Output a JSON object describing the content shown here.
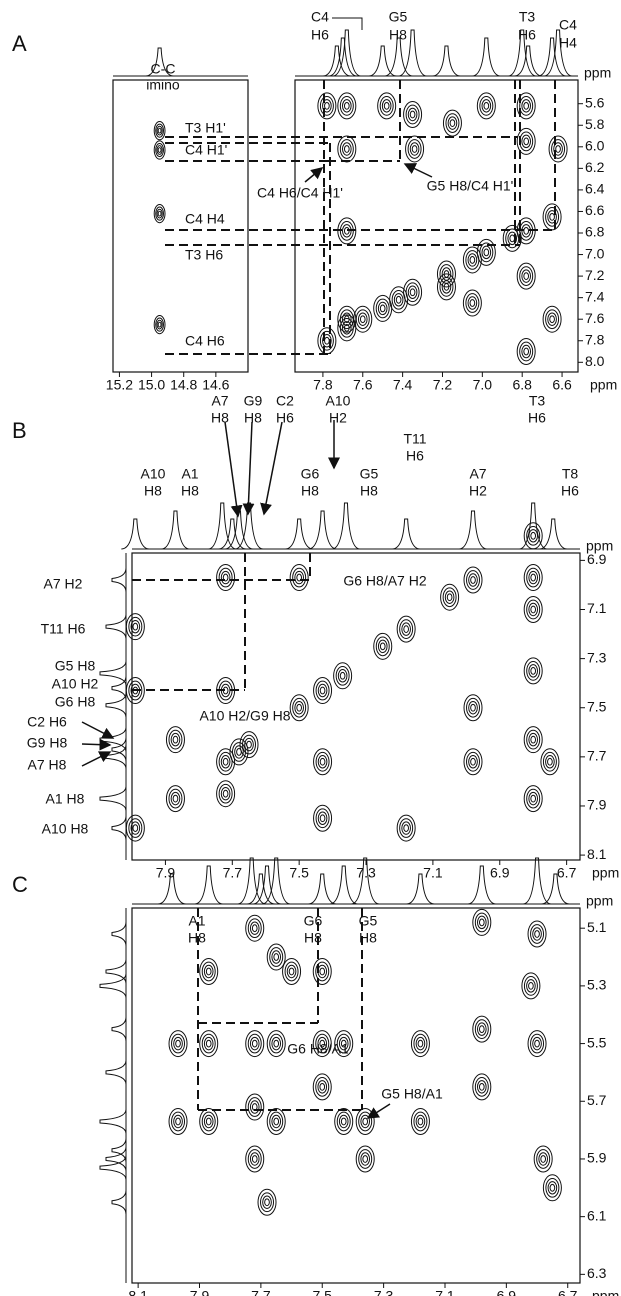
{
  "chart_data": [
    {
      "type": "contour",
      "panel_label": "A",
      "unit": "ppm",
      "xlim": [
        7.94,
        6.52
      ],
      "xticks": [
        7.8,
        7.6,
        7.4,
        7.2,
        {
          "value": 7,
          "label": "7.0"
        },
        6.8,
        6.6
      ],
      "ylim": [
        5.38,
        8.09
      ],
      "yticks": [
        5.6,
        5.8,
        {
          "value": 6,
          "label": "6.0"
        },
        6.2,
        6.4,
        6.6,
        6.8,
        {
          "value": 7,
          "label": "7.0"
        },
        7.2,
        7.4,
        7.6,
        7.8,
        {
          "value": 8,
          "label": "8.0"
        }
      ],
      "imino_title": [
        "C-C",
        "imino"
      ],
      "imino_xlim": [
        15.24,
        14.4
      ],
      "imino_xticks": [
        15.2,
        {
          "value": 15,
          "label": "15.0"
        },
        14.8,
        14.6
      ],
      "imino_peaks": {
        "x": [
          14.95,
          14.95,
          14.95,
          14.95
        ],
        "y": [
          5.85,
          6.03,
          6.62,
          7.65
        ]
      },
      "imino_spectrum": [
        14.95
      ],
      "top_labels": [
        [
          "C4",
          "H6"
        ],
        [
          "G5",
          "H8"
        ],
        [
          "T3",
          "H6"
        ],
        [
          "C4",
          "H4"
        ]
      ],
      "annotations": [
        "T3 H1'",
        "C4 H1'",
        "C4 H6/C4 H1'",
        "G5 H8/C4 H1'",
        "C4 H4",
        "T3 H6",
        "C4 H6"
      ],
      "spectrum": [
        7.73,
        7.7,
        7.68,
        7.5,
        7.42,
        7.35,
        7.18,
        6.98,
        6.8,
        6.77,
        6.65,
        6.62
      ],
      "peaks": {
        "x": [
          7.78,
          7.68,
          7.6,
          7.5,
          7.42,
          7.35,
          7.18,
          7.05,
          6.98,
          6.85,
          6.78,
          6.65,
          7.78,
          7.68,
          7.48,
          7.35,
          7.15,
          6.98,
          6.78,
          6.78,
          6.62,
          7.68,
          7.34,
          7.68,
          7.68,
          7.18,
          7.05,
          6.78,
          6.65,
          6.78
        ],
        "y": [
          7.8,
          7.68,
          7.6,
          7.5,
          7.42,
          7.35,
          7.18,
          7.05,
          6.98,
          6.85,
          6.78,
          6.65,
          5.62,
          5.62,
          5.62,
          5.7,
          5.78,
          5.62,
          5.62,
          5.95,
          6.02,
          6.02,
          6.02,
          6.78,
          7.6,
          7.3,
          7.45,
          7.2,
          7.6,
          7.9
        ]
      }
    },
    {
      "type": "contour",
      "panel_label": "B",
      "unit": "ppm",
      "xlim": [
        8.0,
        6.66
      ],
      "xticks": [
        7.9,
        7.7,
        7.5,
        7.3,
        7.1,
        6.9,
        6.7
      ],
      "ylim": [
        6.87,
        8.12
      ],
      "yticks": [
        6.9,
        7.1,
        7.3,
        7.5,
        7.7,
        7.9,
        8.1
      ],
      "top_labels": [
        [
          "A10",
          "H8"
        ],
        [
          "A1",
          "H8"
        ],
        [
          "A7",
          "H8"
        ],
        [
          "G9",
          "H8"
        ],
        [
          "C2",
          "H6"
        ],
        [
          "G6",
          "H8"
        ],
        [
          "A10",
          "H2"
        ],
        [
          "G5",
          "H8"
        ],
        [
          "T11",
          "H6"
        ],
        [
          "A7",
          "H2"
        ],
        [
          "T3",
          "H6"
        ],
        [
          "T8",
          "H6"
        ]
      ],
      "side_labels": [
        "A7 H2",
        "T11 H6",
        "G5 H8",
        "A10 H2",
        "G6 H8",
        "C2 H6",
        "G9 H8",
        "A7 H8",
        "A1 H8",
        "A10 H8"
      ],
      "annotations": [
        "G6 H8/A7 H2",
        "A10 H2/G9 H8"
      ],
      "spectrum": [
        7.99,
        7.87,
        7.73,
        7.7,
        7.68,
        7.65,
        7.5,
        7.43,
        7.36,
        7.18,
        6.98,
        6.8,
        6.74
      ],
      "side_spectrum": [
        6.98,
        7.17,
        7.36,
        7.42,
        7.49,
        7.63,
        7.67,
        7.7,
        7.87,
        7.99
      ],
      "peaks": {
        "x": [
          7.99,
          7.87,
          7.72,
          7.68,
          7.65,
          7.5,
          7.43,
          7.37,
          7.25,
          7.18,
          7.05,
          6.98,
          6.8,
          7.72,
          7.5,
          6.8,
          7.99,
          6.8,
          7.99,
          7.72,
          6.8,
          6.98,
          7.87,
          6.8,
          6.75,
          6.98,
          7.43,
          6.8,
          7.18,
          7.43,
          7.72
        ],
        "y": [
          7.99,
          7.87,
          7.72,
          7.68,
          7.65,
          7.5,
          7.43,
          7.37,
          7.25,
          7.18,
          7.05,
          6.98,
          6.8,
          6.97,
          6.97,
          6.97,
          7.17,
          7.1,
          7.43,
          7.43,
          7.35,
          7.5,
          7.63,
          7.63,
          7.72,
          7.72,
          7.72,
          7.87,
          7.99,
          7.95,
          7.85
        ]
      }
    },
    {
      "type": "contour",
      "panel_label": "C",
      "unit": "ppm",
      "xlim": [
        8.12,
        6.66
      ],
      "xticks": [
        8.1,
        7.9,
        7.7,
        7.5,
        7.3,
        7.1,
        6.9,
        6.7
      ],
      "ylim": [
        5.03,
        6.33
      ],
      "yticks": [
        5.1,
        5.3,
        5.5,
        5.7,
        5.9,
        6.1,
        6.3
      ],
      "top_labels": [
        [
          "A1",
          "H8"
        ],
        [
          "G6",
          "H8"
        ],
        [
          "G5",
          "H8"
        ]
      ],
      "annotations": [
        "G6 H8/A1",
        "G5 H8/A1"
      ],
      "spectrum": [
        7.99,
        7.87,
        7.73,
        7.7,
        7.68,
        7.65,
        7.5,
        7.43,
        7.36,
        7.18,
        6.98,
        6.8,
        6.74
      ],
      "side_spectrum": [
        5.12,
        5.25,
        5.3,
        5.45,
        5.6,
        5.77,
        5.87,
        5.9,
        5.93,
        6.05
      ],
      "peaks": {
        "x": [
          7.87,
          7.72,
          7.65,
          7.6,
          7.5,
          7.97,
          7.87,
          7.72,
          7.65,
          7.5,
          7.43,
          7.97,
          7.87,
          7.72,
          7.65,
          7.5,
          7.36,
          7.43,
          7.18,
          7.36,
          7.72,
          7.68,
          6.98,
          6.98,
          6.98,
          6.8,
          6.82,
          6.8,
          6.78,
          6.75,
          7.18
        ],
        "y": [
          5.25,
          5.1,
          5.2,
          5.25,
          5.25,
          5.5,
          5.5,
          5.5,
          5.5,
          5.5,
          5.5,
          5.77,
          5.77,
          5.72,
          5.77,
          5.65,
          5.77,
          5.77,
          5.77,
          5.9,
          5.9,
          6.05,
          5.08,
          5.45,
          5.65,
          5.12,
          5.3,
          5.5,
          5.9,
          6.0,
          5.5
        ]
      }
    }
  ]
}
